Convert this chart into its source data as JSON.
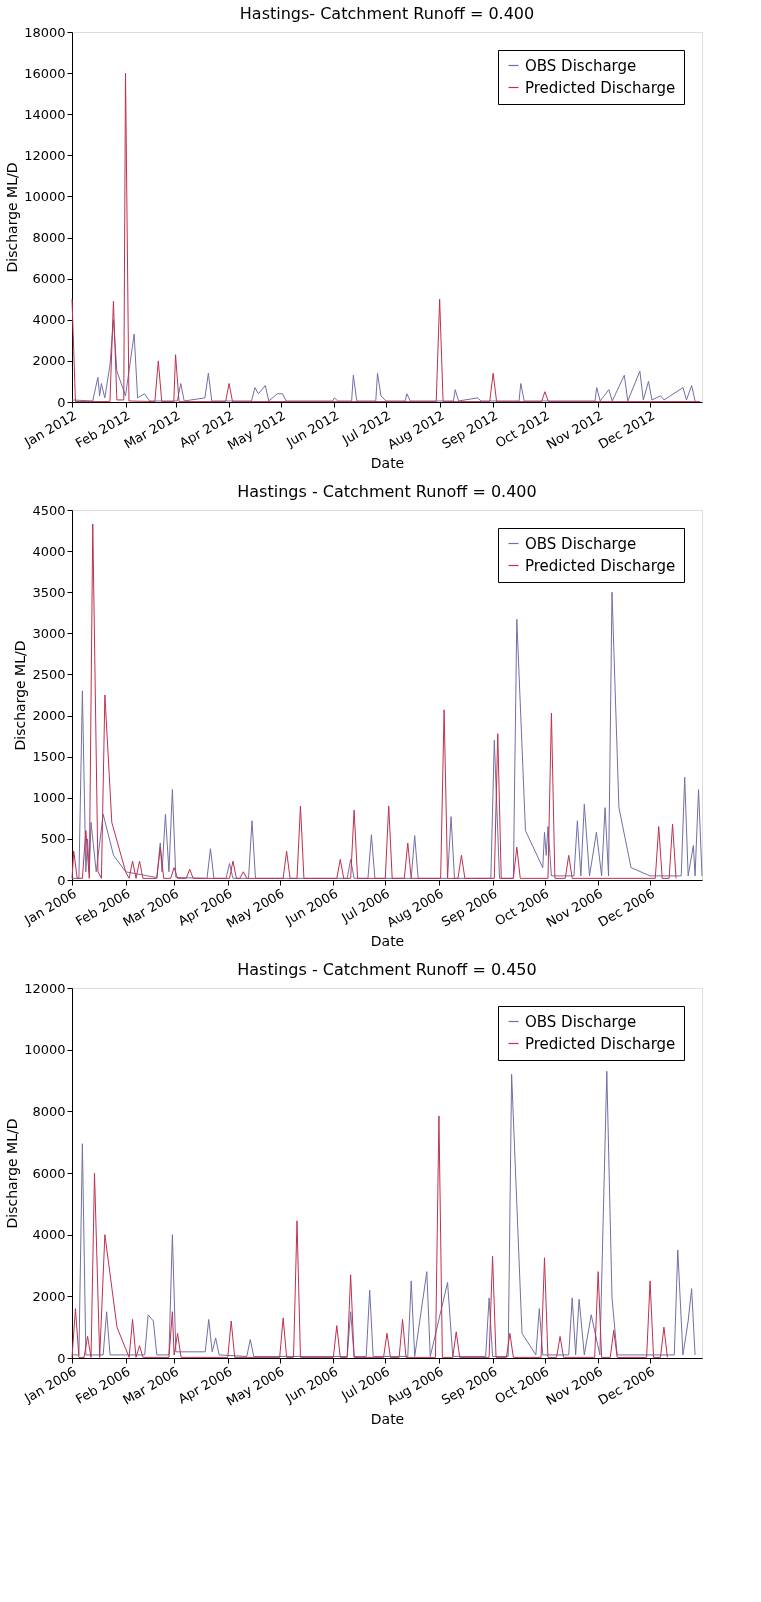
{
  "chart_data": [
    {
      "type": "line",
      "title": "Hastings- Catchment Runoff = 0.400",
      "xlabel": "Date",
      "ylabel": "Discharge ML/D",
      "ylim": [
        0,
        18000
      ],
      "yticks": [
        0,
        2000,
        4000,
        6000,
        8000,
        10000,
        12000,
        14000,
        16000,
        18000
      ],
      "xlim": [
        "2012-01-01",
        "2012-12-31"
      ],
      "xticks": [
        {
          "value": "2012-01-01",
          "label": "Jan 2012"
        },
        {
          "value": "2012-02-01",
          "label": "Feb 2012"
        },
        {
          "value": "2012-03-01",
          "label": "Mar 2012"
        },
        {
          "value": "2012-04-01",
          "label": "Apr 2012"
        },
        {
          "value": "2012-05-01",
          "label": "May 2012"
        },
        {
          "value": "2012-06-01",
          "label": "Jun 2012"
        },
        {
          "value": "2012-07-01",
          "label": "Jul 2012"
        },
        {
          "value": "2012-08-01",
          "label": "Aug 2012"
        },
        {
          "value": "2012-09-01",
          "label": "Sep 2012"
        },
        {
          "value": "2012-10-01",
          "label": "Oct 2012"
        },
        {
          "value": "2012-11-01",
          "label": "Nov 2012"
        },
        {
          "value": "2012-12-01",
          "label": "Dec 2012"
        }
      ],
      "grid": false,
      "legend": "top right",
      "series": [
        {
          "name": "OBS Discharge",
          "color": "#7070a8",
          "x": [
            "2012-01-01",
            "2012-01-13",
            "2012-01-16",
            "2012-01-17",
            "2012-01-18",
            "2012-01-20",
            "2012-01-23",
            "2012-01-25",
            "2012-01-27",
            "2012-02-01",
            "2012-02-06",
            "2012-02-08",
            "2012-02-12",
            "2012-02-15",
            "2012-03-02",
            "2012-03-04",
            "2012-03-06",
            "2012-03-18",
            "2012-03-20",
            "2012-03-22",
            "2012-04-14",
            "2012-04-16",
            "2012-04-18",
            "2012-04-22",
            "2012-04-24",
            "2012-04-29",
            "2012-05-02",
            "2012-05-04",
            "2012-05-31",
            "2012-06-01",
            "2012-06-03",
            "2012-06-11",
            "2012-06-12",
            "2012-06-14",
            "2012-06-25",
            "2012-06-26",
            "2012-06-28",
            "2012-07-01",
            "2012-07-12",
            "2012-07-13",
            "2012-07-15",
            "2012-08-09",
            "2012-08-10",
            "2012-08-12",
            "2012-08-23",
            "2012-08-25",
            "2012-09-16",
            "2012-09-17",
            "2012-09-19",
            "2012-10-30",
            "2012-10-31",
            "2012-11-02",
            "2012-11-07",
            "2012-11-09",
            "2012-11-16",
            "2012-11-18",
            "2012-11-25",
            "2012-11-27",
            "2012-11-30",
            "2012-12-02",
            "2012-12-07",
            "2012-12-09",
            "2012-12-20",
            "2012-12-22",
            "2012-12-25",
            "2012-12-27"
          ],
          "values": [
            100,
            50,
            1200,
            300,
            900,
            200,
            1800,
            4000,
            1500,
            300,
            3300,
            200,
            400,
            50,
            50,
            900,
            50,
            200,
            1400,
            50,
            50,
            700,
            400,
            800,
            50,
            400,
            400,
            50,
            50,
            200,
            50,
            50,
            1300,
            50,
            50,
            1400,
            300,
            50,
            50,
            400,
            50,
            50,
            600,
            50,
            200,
            50,
            50,
            900,
            50,
            50,
            700,
            50,
            600,
            50,
            1300,
            50,
            1500,
            100,
            1000,
            100,
            300,
            100,
            700,
            100,
            800,
            50
          ]
        },
        {
          "name": "Predicted Discharge",
          "color": "#c0304e",
          "x": [
            "2012-01-01",
            "2012-01-03",
            "2012-01-23",
            "2012-01-25",
            "2012-01-27",
            "2012-01-31",
            "2012-02-01",
            "2012-02-03",
            "2012-02-18",
            "2012-02-20",
            "2012-02-22",
            "2012-02-29",
            "2012-03-01",
            "2012-03-03",
            "2012-03-30",
            "2012-04-01",
            "2012-04-03",
            "2012-07-30",
            "2012-08-01",
            "2012-08-03",
            "2012-08-30",
            "2012-09-01",
            "2012-09-03",
            "2012-09-29",
            "2012-10-01",
            "2012-10-03",
            "2012-12-30"
          ],
          "values": [
            5000,
            20,
            20,
            4900,
            100,
            100,
            16000,
            50,
            20,
            2000,
            20,
            20,
            2300,
            20,
            20,
            900,
            20,
            20,
            5000,
            20,
            20,
            1400,
            20,
            20,
            500,
            20,
            20
          ]
        }
      ]
    },
    {
      "type": "line",
      "title": "Hastings - Catchment Runoff = 0.400",
      "xlabel": "Date",
      "ylabel": "Discharge ML/D",
      "ylim": [
        0,
        4500
      ],
      "yticks": [
        0,
        500,
        1000,
        1500,
        2000,
        2500,
        3000,
        3500,
        4000,
        4500
      ],
      "xlim": [
        "2006-01-01",
        "2006-12-31"
      ],
      "xticks": [
        {
          "value": "2006-01-01",
          "label": "Jan 2006"
        },
        {
          "value": "2006-02-01",
          "label": "Feb 2006"
        },
        {
          "value": "2006-03-01",
          "label": "Mar 2006"
        },
        {
          "value": "2006-04-01",
          "label": "Apr 2006"
        },
        {
          "value": "2006-05-01",
          "label": "May 2006"
        },
        {
          "value": "2006-06-01",
          "label": "Jun 2006"
        },
        {
          "value": "2006-07-01",
          "label": "Jul 2006"
        },
        {
          "value": "2006-08-01",
          "label": "Aug 2006"
        },
        {
          "value": "2006-09-01",
          "label": "Sep 2006"
        },
        {
          "value": "2006-10-01",
          "label": "Oct 2006"
        },
        {
          "value": "2006-11-01",
          "label": "Nov 2006"
        },
        {
          "value": "2006-12-01",
          "label": "Dec 2006"
        }
      ],
      "grid": false,
      "legend": "top right",
      "series": [
        {
          "name": "OBS Discharge",
          "color": "#7070a8",
          "x": [
            "2006-01-01",
            "2006-01-05",
            "2006-01-07",
            "2006-01-09",
            "2006-01-10",
            "2006-01-11",
            "2006-01-12",
            "2006-01-15",
            "2006-01-19",
            "2006-01-25",
            "2006-02-01",
            "2006-02-19",
            "2006-02-21",
            "2006-02-22",
            "2006-02-24",
            "2006-02-26",
            "2006-02-28",
            "2006-03-02",
            "2006-03-20",
            "2006-03-22",
            "2006-03-24",
            "2006-03-31",
            "2006-04-02",
            "2006-04-04",
            "2006-04-13",
            "2006-04-15",
            "2006-04-17",
            "2006-06-09",
            "2006-06-11",
            "2006-06-13",
            "2006-06-21",
            "2006-06-23",
            "2006-06-25",
            "2006-07-16",
            "2006-07-18",
            "2006-07-20",
            "2006-08-06",
            "2006-08-08",
            "2006-08-10",
            "2006-08-31",
            "2006-09-02",
            "2006-09-05",
            "2006-09-13",
            "2006-09-15",
            "2006-09-20",
            "2006-09-30",
            "2006-10-01",
            "2006-10-02",
            "2006-10-03",
            "2006-10-05",
            "2006-10-18",
            "2006-10-20",
            "2006-10-22",
            "2006-10-24",
            "2006-10-27",
            "2006-10-31",
            "2006-11-03",
            "2006-11-05",
            "2006-11-07",
            "2006-11-09",
            "2006-11-13",
            "2006-11-20",
            "2006-12-01",
            "2006-12-19",
            "2006-12-21",
            "2006-12-23",
            "2006-12-26",
            "2006-12-27",
            "2006-12-29",
            "2006-12-31"
          ],
          "values": [
            20,
            20,
            2300,
            100,
            500,
            100,
            700,
            100,
            800,
            300,
            100,
            30,
            450,
            100,
            800,
            100,
            1100,
            30,
            20,
            380,
            20,
            20,
            200,
            20,
            20,
            720,
            20,
            20,
            250,
            20,
            20,
            550,
            20,
            20,
            540,
            20,
            20,
            770,
            20,
            20,
            1700,
            20,
            20,
            3170,
            600,
            150,
            580,
            300,
            650,
            50,
            50,
            720,
            50,
            920,
            50,
            580,
            50,
            880,
            50,
            3500,
            880,
            150,
            50,
            50,
            1250,
            50,
            420,
            50,
            1100,
            50
          ]
        },
        {
          "name": "Predicted Discharge",
          "color": "#c0304e",
          "x": [
            "2006-01-01",
            "2006-01-02",
            "2006-01-04",
            "2006-01-07",
            "2006-01-09",
            "2006-01-11",
            "2006-01-13",
            "2006-01-16",
            "2006-01-18",
            "2006-01-20",
            "2006-01-24",
            "2006-02-01",
            "2006-02-03",
            "2006-02-05",
            "2006-02-07",
            "2006-02-09",
            "2006-02-11",
            "2006-02-19",
            "2006-02-21",
            "2006-02-23",
            "2006-02-27",
            "2006-03-01",
            "2006-03-03",
            "2006-03-08",
            "2006-03-10",
            "2006-03-12",
            "2006-04-02",
            "2006-04-04",
            "2006-04-06",
            "2006-04-08",
            "2006-04-10",
            "2006-04-12",
            "2006-05-03",
            "2006-05-05",
            "2006-05-07",
            "2006-05-11",
            "2006-05-13",
            "2006-05-15",
            "2006-06-03",
            "2006-06-05",
            "2006-06-07",
            "2006-06-11",
            "2006-06-13",
            "2006-06-15",
            "2006-07-01",
            "2006-07-03",
            "2006-07-05",
            "2006-07-12",
            "2006-07-14",
            "2006-07-16",
            "2006-08-02",
            "2006-08-04",
            "2006-08-06",
            "2006-08-12",
            "2006-08-14",
            "2006-08-16",
            "2006-09-02",
            "2006-09-04",
            "2006-09-06",
            "2006-09-13",
            "2006-09-15",
            "2006-09-17",
            "2006-10-03",
            "2006-10-05",
            "2006-10-07",
            "2006-10-13",
            "2006-10-15",
            "2006-10-17",
            "2006-12-04",
            "2006-12-06",
            "2006-12-08",
            "2006-12-12",
            "2006-12-14",
            "2006-12-16"
          ],
          "values": [
            20,
            350,
            20,
            20,
            600,
            20,
            4330,
            100,
            20,
            2250,
            700,
            100,
            20,
            230,
            20,
            230,
            20,
            20,
            400,
            20,
            20,
            150,
            20,
            20,
            130,
            20,
            20,
            230,
            20,
            20,
            100,
            20,
            20,
            350,
            20,
            20,
            900,
            20,
            20,
            250,
            20,
            20,
            850,
            20,
            20,
            900,
            20,
            20,
            450,
            20,
            20,
            2070,
            20,
            20,
            300,
            20,
            20,
            1780,
            20,
            20,
            400,
            20,
            20,
            2030,
            20,
            20,
            300,
            20,
            20,
            650,
            20,
            20,
            680,
            20
          ]
        }
      ]
    },
    {
      "type": "line",
      "title": "Hastings - Catchment Runoff = 0.450",
      "xlabel": "Date",
      "ylabel": "Discharge ML/D",
      "ylim": [
        0,
        12000
      ],
      "yticks": [
        0,
        2000,
        4000,
        6000,
        8000,
        10000,
        12000
      ],
      "xlim": [
        "2006-01-01",
        "2006-12-31"
      ],
      "xticks": [
        {
          "value": "2006-01-01",
          "label": "Jan 2006"
        },
        {
          "value": "2006-02-01",
          "label": "Feb 2006"
        },
        {
          "value": "2006-03-01",
          "label": "Mar 2006"
        },
        {
          "value": "2006-04-01",
          "label": "Apr 2006"
        },
        {
          "value": "2006-05-01",
          "label": "May 2006"
        },
        {
          "value": "2006-06-01",
          "label": "Jun 2006"
        },
        {
          "value": "2006-07-01",
          "label": "Jul 2006"
        },
        {
          "value": "2006-08-01",
          "label": "Aug 2006"
        },
        {
          "value": "2006-09-01",
          "label": "Sep 2006"
        },
        {
          "value": "2006-10-01",
          "label": "Oct 2006"
        },
        {
          "value": "2006-11-01",
          "label": "Nov 2006"
        },
        {
          "value": "2006-12-01",
          "label": "Dec 2006"
        }
      ],
      "grid": false,
      "legend": "top right",
      "series": [
        {
          "name": "OBS Discharge",
          "color": "#7070a8",
          "x": [
            "2006-01-01",
            "2006-01-05",
            "2006-01-07",
            "2006-01-09",
            "2006-01-19",
            "2006-01-21",
            "2006-01-23",
            "2006-02-12",
            "2006-02-14",
            "2006-02-17",
            "2006-02-19",
            "2006-02-26",
            "2006-02-28",
            "2006-03-02",
            "2006-03-19",
            "2006-03-21",
            "2006-03-23",
            "2006-03-25",
            "2006-03-27",
            "2006-04-12",
            "2006-04-14",
            "2006-04-16",
            "2006-06-09",
            "2006-06-11",
            "2006-06-13",
            "2006-06-20",
            "2006-06-22",
            "2006-06-24",
            "2006-07-14",
            "2006-07-16",
            "2006-07-18",
            "2006-07-25",
            "2006-07-27",
            "2006-08-06",
            "2006-08-09",
            "2006-08-28",
            "2006-08-30",
            "2006-09-01",
            "2006-09-10",
            "2006-09-12",
            "2006-09-18",
            "2006-09-26",
            "2006-09-28",
            "2006-09-30",
            "2006-10-15",
            "2006-10-17",
            "2006-10-19",
            "2006-10-21",
            "2006-10-24",
            "2006-10-28",
            "2006-11-02",
            "2006-11-06",
            "2006-11-09",
            "2006-11-12",
            "2006-12-15",
            "2006-12-17",
            "2006-12-20",
            "2006-12-23",
            "2006-12-25",
            "2006-12-27"
          ],
          "values": [
            100,
            100,
            6950,
            100,
            100,
            1500,
            100,
            100,
            1400,
            1200,
            100,
            100,
            4000,
            200,
            200,
            1250,
            200,
            650,
            100,
            50,
            600,
            50,
            50,
            1500,
            50,
            50,
            2200,
            50,
            50,
            2500,
            50,
            2800,
            50,
            2450,
            50,
            50,
            1950,
            50,
            50,
            9200,
            800,
            100,
            1600,
            100,
            100,
            1950,
            100,
            1900,
            100,
            1400,
            100,
            9300,
            1950,
            100,
            100,
            3500,
            100,
            1200,
            2250,
            100
          ]
        },
        {
          "name": "Predicted Discharge",
          "color": "#c0304e",
          "x": [
            "2006-01-01",
            "2006-01-03",
            "2006-01-05",
            "2006-01-08",
            "2006-01-10",
            "2006-01-12",
            "2006-01-14",
            "2006-01-17",
            "2006-01-20",
            "2006-01-27",
            "2006-02-01",
            "2006-02-03",
            "2006-02-05",
            "2006-02-07",
            "2006-02-09",
            "2006-02-11",
            "2006-02-26",
            "2006-02-28",
            "2006-03-01",
            "2006-03-03",
            "2006-03-05",
            "2006-04-01",
            "2006-04-03",
            "2006-04-05",
            "2006-05-01",
            "2006-05-03",
            "2006-05-05",
            "2006-05-09",
            "2006-05-11",
            "2006-05-13",
            "2006-06-01",
            "2006-06-03",
            "2006-06-05",
            "2006-06-09",
            "2006-06-11",
            "2006-06-13",
            "2006-06-30",
            "2006-07-02",
            "2006-07-04",
            "2006-07-09",
            "2006-07-11",
            "2006-07-13",
            "2006-07-30",
            "2006-08-01",
            "2006-08-03",
            "2006-08-09",
            "2006-08-11",
            "2006-08-13",
            "2006-08-30",
            "2006-09-01",
            "2006-09-03",
            "2006-09-09",
            "2006-09-11",
            "2006-09-13",
            "2006-09-29",
            "2006-10-01",
            "2006-10-03",
            "2006-10-08",
            "2006-10-10",
            "2006-10-12",
            "2006-10-30",
            "2006-11-01",
            "2006-11-03",
            "2006-11-08",
            "2006-11-10",
            "2006-11-12",
            "2006-11-29",
            "2006-12-01",
            "2006-12-03",
            "2006-12-07",
            "2006-12-09",
            "2006-12-11"
          ],
          "values": [
            20,
            1600,
            20,
            20,
            700,
            20,
            6000,
            20,
            4000,
            1000,
            300,
            20,
            1250,
            20,
            400,
            20,
            20,
            1500,
            100,
            800,
            20,
            20,
            1200,
            20,
            20,
            1300,
            20,
            20,
            4450,
            20,
            20,
            1050,
            20,
            20,
            2700,
            20,
            20,
            800,
            20,
            20,
            1250,
            20,
            20,
            7850,
            20,
            20,
            850,
            20,
            20,
            3300,
            20,
            20,
            800,
            20,
            20,
            3250,
            20,
            20,
            700,
            20,
            20,
            2800,
            20,
            20,
            900,
            20,
            20,
            2500,
            20,
            20,
            1000,
            20
          ]
        }
      ]
    }
  ]
}
